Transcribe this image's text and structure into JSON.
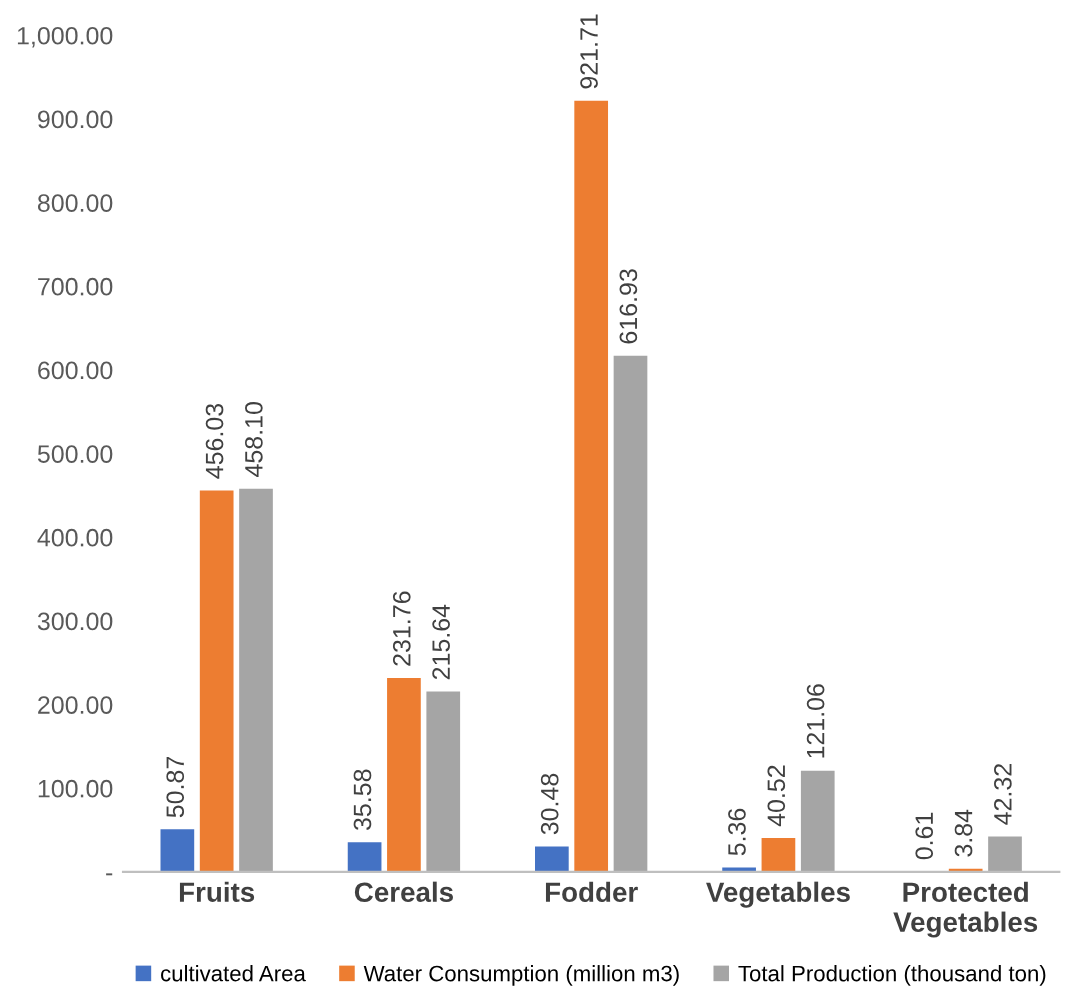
{
  "chart_data": {
    "type": "bar",
    "categories": [
      "Fruits",
      "Cereals",
      "Fodder",
      "Vegetables",
      "Protected\nVegetables"
    ],
    "series": [
      {
        "name": "cultivated Area",
        "color": "#4472c4",
        "values": [
          50.87,
          35.58,
          30.48,
          5.36,
          0.61
        ],
        "value_labels": [
          "50.87",
          "35.58",
          "30.48",
          "5.36",
          "0.61"
        ]
      },
      {
        "name": "Water Consumption (million m3)",
        "color": "#ed7d31",
        "values": [
          456.03,
          231.76,
          921.71,
          40.52,
          3.84
        ],
        "value_labels": [
          "456.03",
          "231.76",
          "921.71",
          "40.52",
          "3.84"
        ]
      },
      {
        "name": "Total Production (thousand ton)",
        "color": "#a5a5a5",
        "values": [
          458.1,
          215.64,
          616.93,
          121.06,
          42.32
        ],
        "value_labels": [
          "458.10",
          "215.64",
          "616.93",
          "121.06",
          "42.32"
        ]
      }
    ],
    "ylim": [
      0,
      1000
    ],
    "yticks": [
      {
        "value": 0,
        "label": "-"
      },
      {
        "value": 100,
        "label": "100.00"
      },
      {
        "value": 200,
        "label": "200.00"
      },
      {
        "value": 300,
        "label": "300.00"
      },
      {
        "value": 400,
        "label": "400.00"
      },
      {
        "value": 500,
        "label": "500.00"
      },
      {
        "value": 600,
        "label": "600.00"
      },
      {
        "value": 700,
        "label": "700.00"
      },
      {
        "value": 800,
        "label": "800.00"
      },
      {
        "value": 900,
        "label": "900.00"
      },
      {
        "value": 1000,
        "label": "1,000.00"
      }
    ],
    "grid": false,
    "legend": "bottom"
  }
}
